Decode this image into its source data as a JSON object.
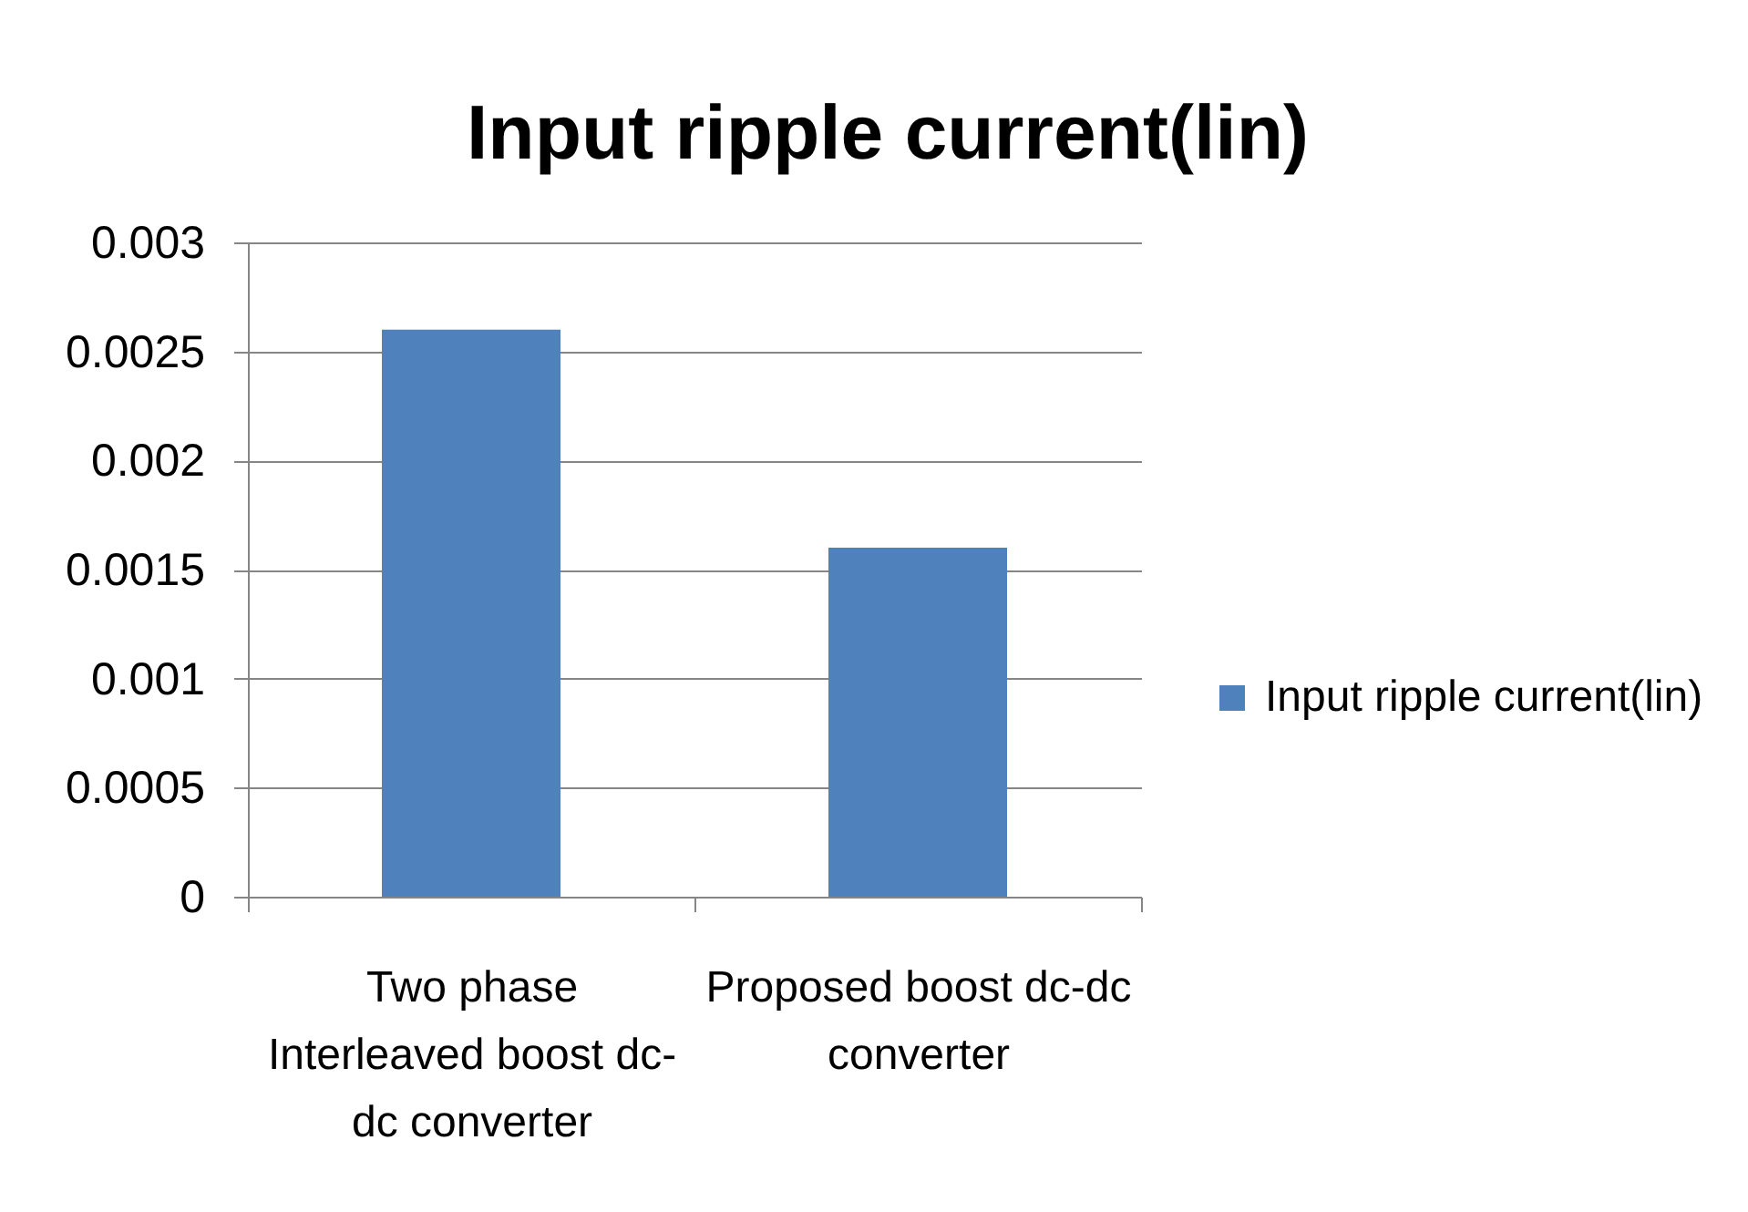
{
  "chart_data": {
    "type": "bar",
    "title": "Input ripple current(lin)",
    "categories": [
      "Two phase Interleaved boost dc-dc converter",
      "Proposed  boost dc-dc converter"
    ],
    "series": [
      {
        "name": "Input ripple current(lin)",
        "color": "#4f81bd",
        "values": [
          0.0026,
          0.0016
        ]
      }
    ],
    "ylim": [
      0,
      0.003
    ],
    "yticks": [
      0,
      0.0005,
      0.001,
      0.0015,
      0.002,
      0.0025,
      0.003
    ],
    "grid": "y",
    "legend": "right"
  }
}
